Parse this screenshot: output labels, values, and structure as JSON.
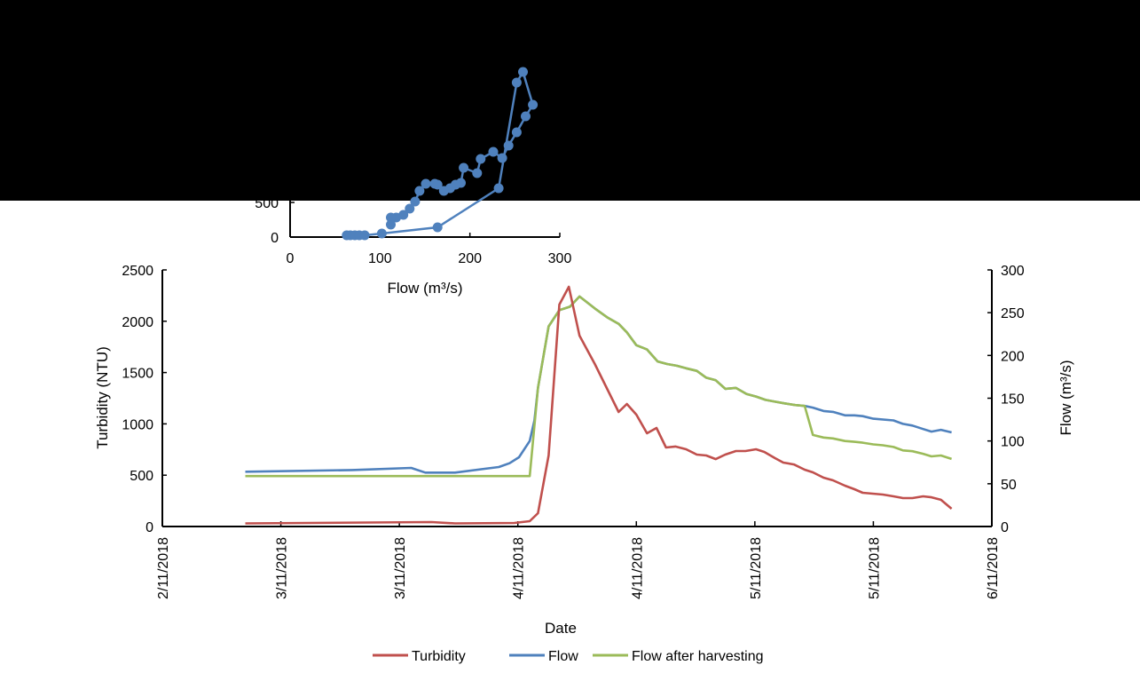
{
  "chart_data": [
    {
      "type": "line",
      "xlabel": "Date",
      "ylabel": "Turbidity (NTU)",
      "y2label": "Flow (m³/s)",
      "x_ticks": [
        "2/11/2018",
        "3/11/2018",
        "3/11/2018",
        "4/11/2018",
        "4/11/2018",
        "5/11/2018",
        "5/11/2018",
        "6/11/2018"
      ],
      "x_range_tick_index": [
        0,
        7
      ],
      "ylim": [
        0,
        2500
      ],
      "y_ticks": [
        0,
        500,
        1000,
        1500,
        2000,
        2500
      ],
      "y2lim": [
        0,
        300
      ],
      "y2_ticks": [
        0,
        50,
        100,
        150,
        200,
        250,
        300
      ],
      "grid": false,
      "legend_position": "bottom",
      "series": [
        {
          "name": "Turbidity",
          "axis": "left",
          "color": "#C0504D",
          "points": [
            [
              0.7,
              30
            ],
            [
              2.27,
              43
            ],
            [
              2.47,
              30
            ],
            [
              2.97,
              35
            ],
            [
              3.1,
              52
            ],
            [
              3.17,
              130
            ],
            [
              3.26,
              692
            ],
            [
              3.35,
              2163
            ],
            [
              3.43,
              2336
            ],
            [
              3.52,
              1860
            ],
            [
              3.65,
              1583
            ],
            [
              3.85,
              1116
            ],
            [
              3.92,
              1194
            ],
            [
              4.0,
              1090
            ],
            [
              4.09,
              908
            ],
            [
              4.17,
              960
            ],
            [
              4.25,
              770
            ],
            [
              4.33,
              779
            ],
            [
              4.42,
              753
            ],
            [
              4.51,
              701
            ],
            [
              4.59,
              692
            ],
            [
              4.67,
              657
            ],
            [
              4.75,
              701
            ],
            [
              4.84,
              735
            ],
            [
              4.92,
              735
            ],
            [
              5.01,
              753
            ],
            [
              5.08,
              727
            ],
            [
              5.17,
              666
            ],
            [
              5.24,
              623
            ],
            [
              5.33,
              605
            ],
            [
              5.42,
              554
            ],
            [
              5.49,
              528
            ],
            [
              5.58,
              476
            ],
            [
              5.66,
              450
            ],
            [
              5.76,
              398
            ],
            [
              5.84,
              363
            ],
            [
              5.91,
              329
            ],
            [
              6.08,
              311
            ],
            [
              6.17,
              294
            ],
            [
              6.25,
              277
            ],
            [
              6.33,
              277
            ],
            [
              6.42,
              294
            ],
            [
              6.49,
              285
            ],
            [
              6.57,
              260
            ],
            [
              6.66,
              173
            ]
          ]
        },
        {
          "name": "Flow",
          "axis": "right",
          "color": "#4F81BD",
          "points": [
            [
              0.7,
              64
            ],
            [
              1.6,
              66
            ],
            [
              2.1,
              68.5
            ],
            [
              2.22,
              63
            ],
            [
              2.47,
              63
            ],
            [
              2.72,
              67.5
            ],
            [
              2.84,
              69.5
            ],
            [
              2.93,
              74
            ],
            [
              3.01,
              81
            ],
            [
              3.1,
              100
            ],
            [
              3.14,
              124
            ],
            [
              3.17,
              162
            ],
            [
              3.26,
              234
            ],
            [
              3.35,
              253
            ],
            [
              3.44,
              257
            ],
            [
              3.52,
              269
            ],
            [
              3.65,
              255
            ],
            [
              3.76,
              244
            ],
            [
              3.85,
              237
            ],
            [
              3.92,
              227
            ],
            [
              4.0,
              212
            ],
            [
              4.09,
              207
            ],
            [
              4.18,
              193
            ],
            [
              4.26,
              190
            ],
            [
              4.34,
              188
            ],
            [
              4.42,
              185
            ],
            [
              4.51,
              182
            ],
            [
              4.59,
              174
            ],
            [
              4.67,
              171
            ],
            [
              4.75,
              161
            ],
            [
              4.84,
              162
            ],
            [
              4.93,
              155
            ],
            [
              5.01,
              152
            ],
            [
              5.09,
              148
            ],
            [
              5.17,
              146
            ],
            [
              5.25,
              144
            ],
            [
              5.34,
              142
            ],
            [
              5.42,
              141
            ],
            [
              5.49,
              139
            ],
            [
              5.58,
              135
            ],
            [
              5.66,
              134
            ],
            [
              5.76,
              130
            ],
            [
              5.84,
              130
            ],
            [
              5.91,
              129
            ],
            [
              6.0,
              126
            ],
            [
              6.17,
              124
            ],
            [
              6.25,
              120
            ],
            [
              6.33,
              118
            ],
            [
              6.42,
              114
            ],
            [
              6.49,
              111
            ],
            [
              6.57,
              113
            ],
            [
              6.66,
              110
            ]
          ]
        },
        {
          "name": "Flow after harvesting",
          "axis": "right",
          "color": "#9BBB59",
          "points": [
            [
              0.7,
              59
            ],
            [
              3.1,
              59
            ],
            [
              3.17,
              162
            ],
            [
              3.26,
              234
            ],
            [
              3.35,
              253
            ],
            [
              3.44,
              257
            ],
            [
              3.52,
              269
            ],
            [
              3.65,
              255
            ],
            [
              3.76,
              244
            ],
            [
              3.85,
              237
            ],
            [
              3.92,
              227
            ],
            [
              4.0,
              212
            ],
            [
              4.09,
              207
            ],
            [
              4.18,
              193
            ],
            [
              4.26,
              190
            ],
            [
              4.34,
              188
            ],
            [
              4.42,
              185
            ],
            [
              4.51,
              182
            ],
            [
              4.59,
              174
            ],
            [
              4.67,
              171
            ],
            [
              4.75,
              161
            ],
            [
              4.84,
              162
            ],
            [
              4.93,
              155
            ],
            [
              5.01,
              152
            ],
            [
              5.09,
              148
            ],
            [
              5.17,
              146
            ],
            [
              5.25,
              144
            ],
            [
              5.34,
              142
            ],
            [
              5.42,
              141
            ],
            [
              5.49,
              107
            ],
            [
              5.58,
              104
            ],
            [
              5.66,
              103
            ],
            [
              5.76,
              100
            ],
            [
              5.84,
              99
            ],
            [
              5.91,
              98
            ],
            [
              6.0,
              96
            ],
            [
              6.08,
              95
            ],
            [
              6.17,
              93
            ],
            [
              6.25,
              89
            ],
            [
              6.33,
              88
            ],
            [
              6.42,
              85
            ],
            [
              6.49,
              82
            ],
            [
              6.57,
              83
            ],
            [
              6.66,
              79
            ]
          ]
        }
      ]
    },
    {
      "type": "scatter",
      "xlabel": "Flow (m³/s)",
      "xlim": [
        0,
        300
      ],
      "x_ticks": [
        0,
        100,
        200,
        300
      ],
      "y_ticks_visible": [
        0,
        500
      ],
      "connected": true,
      "color": "#4F81BD",
      "points": [
        [
          63,
          26
        ],
        [
          67,
          26
        ],
        [
          72,
          26
        ],
        [
          77,
          26
        ],
        [
          83,
          26
        ],
        [
          102,
          51
        ],
        [
          164,
          141
        ],
        [
          232,
          705
        ],
        [
          252,
          2231
        ],
        [
          259,
          2385
        ],
        [
          270,
          1910
        ],
        [
          262,
          1744
        ],
        [
          252,
          1513
        ],
        [
          243,
          1321
        ],
        [
          236,
          1141
        ],
        [
          226,
          1231
        ],
        [
          212,
          1128
        ],
        [
          208,
          923
        ],
        [
          193,
          1000
        ],
        [
          190,
          782
        ],
        [
          184,
          756
        ],
        [
          178,
          705
        ],
        [
          171,
          667
        ],
        [
          164,
          756
        ],
        [
          161,
          769
        ],
        [
          151,
          769
        ],
        [
          144,
          667
        ],
        [
          139,
          513
        ],
        [
          133,
          410
        ],
        [
          126,
          321
        ],
        [
          118,
          282
        ],
        [
          112,
          282
        ],
        [
          112,
          179
        ]
      ]
    }
  ],
  "occluding_overlay_color": "#000000"
}
